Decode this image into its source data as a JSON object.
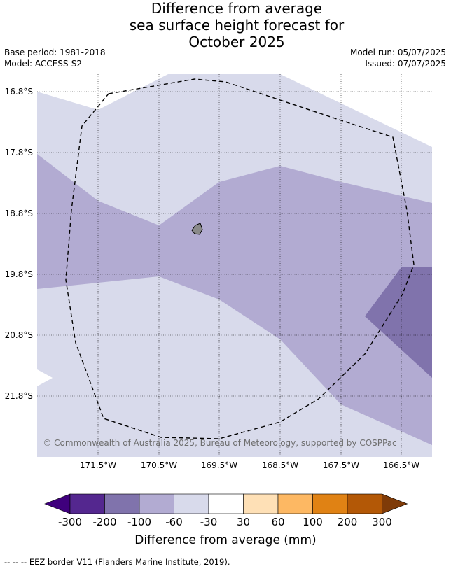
{
  "title_lines": [
    "Difference from average",
    "sea surface height forecast for",
    "October 2025"
  ],
  "base_period": "Base period: 1981-2018",
  "model": "Model: ACCESS-S2",
  "model_run": "Model run: 05/07/2025",
  "issued": "Issued: 07/07/2025",
  "copyright": "© Commonwealth of Australia 2025, Bureau of Meteorology, supported by COSPPac",
  "lat_labels": [
    "16.8°S",
    "17.8°S",
    "18.8°S",
    "19.8°S",
    "20.8°S",
    "21.8°S"
  ],
  "lon_labels": [
    "171.5°W",
    "170.5°W",
    "169.5°W",
    "168.5°W",
    "167.5°W",
    "166.5°W"
  ],
  "colorbar": {
    "ticks": [
      "-300",
      "-200",
      "-100",
      "-60",
      "-30",
      "30",
      "60",
      "100",
      "200",
      "300"
    ],
    "colors": [
      "#3f007d",
      "#54278f",
      "#8073ac",
      "#b2abd2",
      "#d8daeb",
      "#ffffff",
      "#fee0b6",
      "#fdb863",
      "#e08214",
      "#b35806",
      "#7f3b08"
    ],
    "label": "Difference from average (mm)"
  },
  "footnote": "--  --  -- EEZ border V11 (Flanders Marine Institute, 2019)."
}
